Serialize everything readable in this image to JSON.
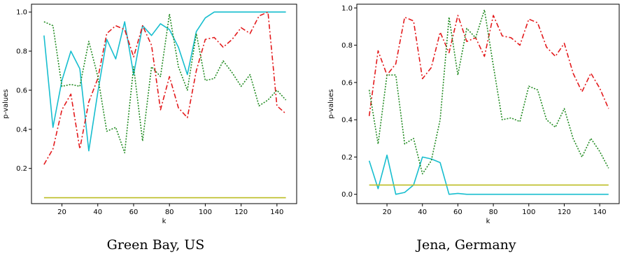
{
  "chart_data": [
    {
      "type": "line",
      "caption": "Green Bay, US",
      "xlabel": "k",
      "ylabel": "p-values",
      "xlim": [
        3,
        151
      ],
      "ylim": [
        0.02,
        1.04
      ],
      "xticks": [
        20,
        40,
        60,
        80,
        100,
        120,
        140
      ],
      "yticks": [
        0.2,
        0.4,
        0.6,
        0.8,
        1.0
      ],
      "ytick_labels": [
        "0.2",
        "0.4",
        "0.6",
        "0.8",
        "1.0"
      ],
      "grid": false,
      "x": [
        10,
        15,
        20,
        25,
        30,
        35,
        40,
        45,
        50,
        55,
        60,
        65,
        70,
        75,
        80,
        85,
        90,
        95,
        100,
        105,
        110,
        115,
        120,
        125,
        130,
        135,
        140,
        145
      ],
      "series": [
        {
          "color": "#17becf",
          "linestyle": "solid",
          "values": [
            0.88,
            0.41,
            0.65,
            0.8,
            0.71,
            0.29,
            0.59,
            0.86,
            0.76,
            0.95,
            0.68,
            0.93,
            0.88,
            0.94,
            0.91,
            0.82,
            0.68,
            0.9,
            0.97,
            1.0,
            1.0,
            1.0,
            1.0,
            1.0,
            1.0,
            1.0,
            1.0,
            1.0
          ]
        },
        {
          "color": "#e31a1c",
          "linestyle": "dashdot",
          "values": [
            0.22,
            0.3,
            0.5,
            0.58,
            0.3,
            0.54,
            0.66,
            0.89,
            0.93,
            0.91,
            0.77,
            0.93,
            0.83,
            0.5,
            0.67,
            0.51,
            0.46,
            0.7,
            0.86,
            0.87,
            0.82,
            0.86,
            0.92,
            0.89,
            0.98,
            1.0,
            0.52,
            0.48
          ]
        },
        {
          "color": "#228b22",
          "linestyle": "dotted",
          "values": [
            0.95,
            0.93,
            0.62,
            0.63,
            0.62,
            0.85,
            0.67,
            0.39,
            0.41,
            0.28,
            0.72,
            0.34,
            0.72,
            0.67,
            0.99,
            0.72,
            0.6,
            0.89,
            0.65,
            0.66,
            0.75,
            0.69,
            0.62,
            0.68,
            0.52,
            0.55,
            0.6,
            0.55
          ]
        },
        {
          "color": "#bcbd22",
          "linestyle": "solid",
          "values": [
            0.05,
            0.05,
            0.05,
            0.05,
            0.05,
            0.05,
            0.05,
            0.05,
            0.05,
            0.05,
            0.05,
            0.05,
            0.05,
            0.05,
            0.05,
            0.05,
            0.05,
            0.05,
            0.05,
            0.05,
            0.05,
            0.05,
            0.05,
            0.05,
            0.05,
            0.05,
            0.05,
            0.05
          ]
        }
      ]
    },
    {
      "type": "line",
      "caption": "Jena, Germany",
      "xlabel": "k",
      "ylabel": "p-values",
      "xlim": [
        3,
        151
      ],
      "ylim": [
        -0.05,
        1.02
      ],
      "xticks": [
        20,
        40,
        60,
        80,
        100,
        120,
        140
      ],
      "yticks": [
        0.0,
        0.2,
        0.4,
        0.6,
        0.8,
        1.0
      ],
      "ytick_labels": [
        "0.0",
        "0.2",
        "0.4",
        "0.6",
        "0.8",
        "1.0"
      ],
      "grid": false,
      "x": [
        10,
        15,
        20,
        25,
        30,
        35,
        40,
        45,
        50,
        55,
        60,
        65,
        70,
        75,
        80,
        85,
        90,
        95,
        100,
        105,
        110,
        115,
        120,
        125,
        130,
        135,
        140,
        145
      ],
      "series": [
        {
          "color": "#17becf",
          "linestyle": "solid",
          "values": [
            0.18,
            0.03,
            0.21,
            0.0,
            0.01,
            0.05,
            0.2,
            0.19,
            0.17,
            0.0,
            0.005,
            0.0,
            0.0,
            0.0,
            0.0,
            0.0,
            0.0,
            0.0,
            0.0,
            0.0,
            0.0,
            0.0,
            0.0,
            0.0,
            0.0,
            0.0,
            0.0,
            0.0
          ]
        },
        {
          "color": "#e31a1c",
          "linestyle": "dashdot",
          "values": [
            0.42,
            0.77,
            0.64,
            0.7,
            0.95,
            0.93,
            0.62,
            0.68,
            0.87,
            0.76,
            0.96,
            0.82,
            0.84,
            0.74,
            0.96,
            0.85,
            0.84,
            0.8,
            0.94,
            0.92,
            0.79,
            0.74,
            0.81,
            0.65,
            0.55,
            0.65,
            0.57,
            0.46
          ]
        },
        {
          "color": "#228b22",
          "linestyle": "dotted",
          "values": [
            0.56,
            0.27,
            0.64,
            0.64,
            0.27,
            0.3,
            0.11,
            0.18,
            0.4,
            0.95,
            0.64,
            0.89,
            0.84,
            0.99,
            0.69,
            0.4,
            0.41,
            0.39,
            0.58,
            0.56,
            0.4,
            0.36,
            0.46,
            0.3,
            0.2,
            0.3,
            0.23,
            0.14
          ]
        },
        {
          "color": "#bcbd22",
          "linestyle": "solid",
          "values": [
            0.05,
            0.05,
            0.05,
            0.05,
            0.05,
            0.05,
            0.05,
            0.05,
            0.05,
            0.05,
            0.05,
            0.05,
            0.05,
            0.05,
            0.05,
            0.05,
            0.05,
            0.05,
            0.05,
            0.05,
            0.05,
            0.05,
            0.05,
            0.05,
            0.05,
            0.05,
            0.05,
            0.05
          ]
        }
      ]
    }
  ]
}
